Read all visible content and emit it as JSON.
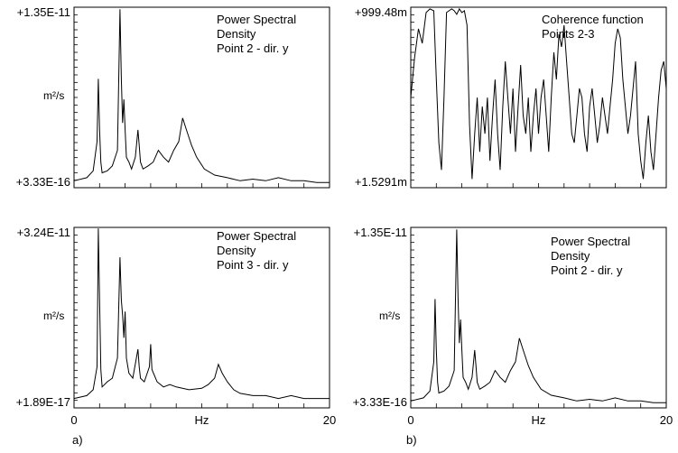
{
  "panel_labels": [
    "a)",
    "b)"
  ],
  "chart_data": [
    {
      "type": "line",
      "title": "Power Spectral\nDensity\nPoint 2 - dir. y",
      "ylabel": "m²/s",
      "xlabel": "",
      "y_top_label": "+1.35E-11",
      "y_bottom_label": "+3.33E-16",
      "ylim": [
        3.33e-16,
        1.35e-11
      ],
      "y_scale": "log",
      "xlim": [
        0,
        20
      ],
      "x_tick_labels": [],
      "grid": false,
      "line_color": "#000000",
      "series": [
        {
          "x": [
            0.0,
            1.0,
            1.5,
            1.8,
            1.9,
            2.0,
            2.1,
            2.2,
            2.6,
            3.0,
            3.4,
            3.6,
            3.7,
            3.8,
            3.9,
            4.0,
            4.1,
            4.3,
            4.5,
            4.8,
            5.0,
            5.1,
            5.2,
            5.4,
            5.8,
            6.2,
            6.6,
            7.0,
            7.4,
            7.8,
            8.2,
            8.5,
            8.8,
            9.2,
            9.6,
            10.2,
            11.0,
            12.0,
            13.0,
            14.0,
            15.0,
            16.0,
            17.0,
            18.0,
            19.0,
            20.0
          ],
          "y": [
            5e-16,
            6e-16,
            9e-16,
            5e-15,
            2e-13,
            1e-14,
            1.5e-15,
            8e-16,
            9e-16,
            1.2e-15,
            3e-15,
            1.2e-11,
            2e-13,
            1.5e-14,
            6e-14,
            1e-14,
            2e-15,
            1.5e-15,
            1e-15,
            2e-15,
            1e-14,
            4e-15,
            1.5e-15,
            1e-15,
            1.2e-15,
            1.5e-15,
            3e-15,
            2e-15,
            1.5e-15,
            3e-15,
            5e-15,
            2e-14,
            1e-14,
            4e-15,
            2e-15,
            1e-15,
            7e-16,
            6e-16,
            5e-16,
            5.5e-16,
            5e-16,
            6e-16,
            5e-16,
            5e-16,
            4.5e-16,
            4.5e-16
          ]
        }
      ]
    },
    {
      "type": "line",
      "title": "Coherence function\nPoints 2-3",
      "ylabel": "",
      "xlabel": "",
      "y_top_label": "+999.48m",
      "y_bottom_label": "+1.5291m",
      "ylim": [
        0.0015291,
        0.99948
      ],
      "y_scale": "linear",
      "xlim": [
        0,
        20
      ],
      "x_tick_labels": [],
      "grid": false,
      "line_color": "#000000",
      "series": [
        {
          "x": [
            0.0,
            0.3,
            0.6,
            0.9,
            1.2,
            1.5,
            1.8,
            2.0,
            2.2,
            2.4,
            2.6,
            2.8,
            3.0,
            3.2,
            3.4,
            3.6,
            3.8,
            4.0,
            4.2,
            4.4,
            4.6,
            4.8,
            5.0,
            5.2,
            5.4,
            5.6,
            5.8,
            6.0,
            6.2,
            6.4,
            6.6,
            6.8,
            7.0,
            7.2,
            7.4,
            7.6,
            7.8,
            8.0,
            8.2,
            8.4,
            8.6,
            8.8,
            9.0,
            9.2,
            9.4,
            9.6,
            9.8,
            10.0,
            10.2,
            10.4,
            10.6,
            10.8,
            11.0,
            11.2,
            11.4,
            11.6,
            11.8,
            12.0,
            12.2,
            12.4,
            12.6,
            12.8,
            13.0,
            13.2,
            13.4,
            13.6,
            13.8,
            14.0,
            14.2,
            14.4,
            14.6,
            14.8,
            15.0,
            15.2,
            15.4,
            15.6,
            15.8,
            16.0,
            16.2,
            16.4,
            16.6,
            16.8,
            17.0,
            17.2,
            17.4,
            17.6,
            17.8,
            18.0,
            18.2,
            18.4,
            18.6,
            18.8,
            19.0,
            19.2,
            19.4,
            19.6,
            19.8,
            20.0
          ],
          "y": [
            0.5,
            0.72,
            0.88,
            0.8,
            0.97,
            0.99,
            0.98,
            0.6,
            0.25,
            0.1,
            0.5,
            0.97,
            0.98,
            0.99,
            0.98,
            0.96,
            0.99,
            0.97,
            0.98,
            0.9,
            0.35,
            0.05,
            0.3,
            0.5,
            0.2,
            0.45,
            0.3,
            0.5,
            0.15,
            0.4,
            0.6,
            0.3,
            0.1,
            0.45,
            0.7,
            0.5,
            0.3,
            0.55,
            0.2,
            0.45,
            0.68,
            0.4,
            0.3,
            0.5,
            0.2,
            0.4,
            0.55,
            0.3,
            0.5,
            0.6,
            0.4,
            0.2,
            0.5,
            0.75,
            0.6,
            0.85,
            0.78,
            0.9,
            0.7,
            0.5,
            0.3,
            0.25,
            0.4,
            0.55,
            0.5,
            0.3,
            0.2,
            0.45,
            0.55,
            0.4,
            0.25,
            0.35,
            0.5,
            0.4,
            0.3,
            0.45,
            0.6,
            0.8,
            0.88,
            0.83,
            0.6,
            0.45,
            0.3,
            0.4,
            0.55,
            0.7,
            0.3,
            0.15,
            0.05,
            0.25,
            0.4,
            0.2,
            0.1,
            0.3,
            0.5,
            0.65,
            0.7,
            0.55
          ]
        }
      ]
    },
    {
      "type": "line",
      "title": "Power Spectral\nDensity\nPoint 3 - dir. y",
      "ylabel": "m²/s",
      "xlabel": "Hz",
      "y_top_label": "+3.24E-11",
      "y_bottom_label": "+1.89E-17",
      "ylim": [
        1.89e-17,
        3.24e-11
      ],
      "y_scale": "log",
      "xlim": [
        0,
        20
      ],
      "x_tick_labels": [
        "0",
        "20"
      ],
      "grid": false,
      "line_color": "#000000",
      "series": [
        {
          "x": [
            0.0,
            1.0,
            1.5,
            1.8,
            1.9,
            2.0,
            2.1,
            2.2,
            2.6,
            3.0,
            3.4,
            3.6,
            3.7,
            3.8,
            3.9,
            4.0,
            4.1,
            4.3,
            4.6,
            5.0,
            5.1,
            5.2,
            5.5,
            5.9,
            6.0,
            6.1,
            6.5,
            7.0,
            7.5,
            8.0,
            9.0,
            10.0,
            10.5,
            11.0,
            11.3,
            11.6,
            12.0,
            12.5,
            13.0,
            14.0,
            15.0,
            16.0,
            17.0,
            18.0,
            19.0,
            20.0
          ],
          "y": [
            4e-17,
            5e-17,
            8e-17,
            5e-16,
            3e-11,
            1e-13,
            4e-16,
            1e-16,
            1.5e-16,
            2e-16,
            1e-15,
            3e-12,
            1e-13,
            3e-14,
            5e-15,
            4e-14,
            1e-15,
            3e-16,
            2e-16,
            2e-15,
            5e-16,
            2e-16,
            1.5e-16,
            5e-16,
            3e-15,
            4e-16,
            1.5e-16,
            1e-16,
            1.2e-16,
            1e-16,
            8e-17,
            9e-17,
            1.2e-16,
            2e-16,
            6e-16,
            3e-16,
            1.5e-16,
            8e-17,
            6e-17,
            5e-17,
            5e-17,
            4e-17,
            5e-17,
            4e-17,
            4e-17,
            4e-17
          ]
        }
      ]
    },
    {
      "type": "line",
      "title": "Power Spectral\nDensity\nPoint 2 - dir. y",
      "ylabel": "m²/s",
      "xlabel": "Hz",
      "y_top_label": "+1.35E-11",
      "y_bottom_label": "+3.33E-16",
      "ylim": [
        3.33e-16,
        1.35e-11
      ],
      "y_scale": "log",
      "xlim": [
        0,
        20
      ],
      "x_tick_labels": [
        "0",
        "20"
      ],
      "grid": false,
      "line_color": "#000000",
      "series": [
        {
          "x": [
            0.0,
            1.0,
            1.5,
            1.8,
            1.9,
            2.0,
            2.1,
            2.2,
            2.6,
            3.0,
            3.4,
            3.6,
            3.7,
            3.8,
            3.9,
            4.0,
            4.1,
            4.3,
            4.5,
            4.8,
            5.0,
            5.1,
            5.2,
            5.4,
            5.8,
            6.2,
            6.6,
            7.0,
            7.4,
            7.8,
            8.2,
            8.5,
            8.8,
            9.2,
            9.6,
            10.2,
            11.0,
            12.0,
            13.0,
            14.0,
            15.0,
            16.0,
            17.0,
            18.0,
            19.0,
            20.0
          ],
          "y": [
            5e-16,
            6e-16,
            9e-16,
            5e-15,
            2e-13,
            1e-14,
            1.5e-15,
            8e-16,
            9e-16,
            1.2e-15,
            3e-15,
            1.2e-11,
            2e-13,
            1.5e-14,
            6e-14,
            1e-14,
            2e-15,
            1.5e-15,
            1e-15,
            2e-15,
            1e-14,
            4e-15,
            1.5e-15,
            1e-15,
            1.2e-15,
            1.5e-15,
            3e-15,
            2e-15,
            1.5e-15,
            3e-15,
            5e-15,
            2e-14,
            1e-14,
            4e-15,
            2e-15,
            1e-15,
            7e-16,
            6e-16,
            5e-16,
            5.5e-16,
            5e-16,
            6e-16,
            5e-16,
            5e-16,
            4.5e-16,
            4.5e-16
          ]
        }
      ]
    }
  ]
}
